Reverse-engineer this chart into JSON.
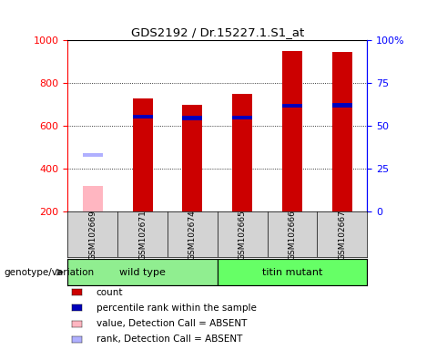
{
  "title": "GDS2192 / Dr.15227.1.S1_at",
  "samples": [
    "GSM102669",
    "GSM102671",
    "GSM102674",
    "GSM102665",
    "GSM102666",
    "GSM102667"
  ],
  "groups": [
    {
      "name": "wild type",
      "indices": [
        0,
        1,
        2
      ],
      "color": "#90EE90"
    },
    {
      "name": "titin mutant",
      "indices": [
        3,
        4,
        5
      ],
      "color": "#66FF66"
    }
  ],
  "count_values": [
    320,
    730,
    700,
    750,
    950,
    945
  ],
  "count_absent": [
    true,
    false,
    false,
    false,
    false,
    false
  ],
  "rank_values": [
    455,
    635,
    628,
    630,
    685,
    688
  ],
  "rank_absent": [
    true,
    false,
    false,
    false,
    false,
    false
  ],
  "ylim_left": [
    200,
    1000
  ],
  "ylim_right": [
    0,
    100
  ],
  "yticks_left": [
    200,
    400,
    600,
    800,
    1000
  ],
  "yticks_right": [
    0,
    25,
    50,
    75,
    100
  ],
  "bar_width": 0.4,
  "rank_bar_height": 18,
  "count_color_normal": "#cc0000",
  "count_color_absent": "#ffb6c1",
  "rank_color_normal": "#0000bb",
  "rank_color_absent": "#b0b0ff",
  "legend_items": [
    {
      "label": "count",
      "color": "#cc0000"
    },
    {
      "label": "percentile rank within the sample",
      "color": "#0000bb"
    },
    {
      "label": "value, Detection Call = ABSENT",
      "color": "#ffb6c1"
    },
    {
      "label": "rank, Detection Call = ABSENT",
      "color": "#b0b0ff"
    }
  ],
  "group_label": "genotype/variation"
}
